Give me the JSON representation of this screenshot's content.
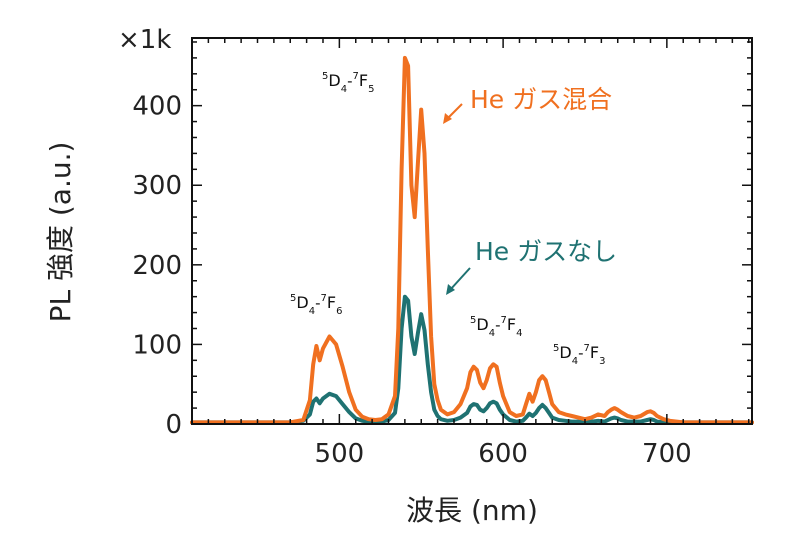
{
  "chart_data": {
    "type": "line",
    "title": "",
    "xlabel": "波長 (nm)",
    "ylabel": "PL 強度 (a.u.)",
    "y_multiplier": "×1k",
    "xlim": [
      410,
      752
    ],
    "ylim": [
      0,
      485
    ],
    "xticks": [
      500,
      600,
      700
    ],
    "yticks": [
      0,
      100,
      200,
      300,
      400
    ],
    "grid": false,
    "series": [
      {
        "name": "He ガス混合",
        "color": "#f07020",
        "x": [
          410,
          470,
          478,
          482,
          484,
          486,
          488,
          490,
          494,
          498,
          502,
          506,
          510,
          514,
          518,
          522,
          526,
          530,
          534,
          536,
          538,
          540,
          542,
          544,
          546,
          548,
          550,
          552,
          554,
          556,
          558,
          560,
          562,
          566,
          570,
          574,
          578,
          580,
          582,
          584,
          586,
          588,
          590,
          592,
          594,
          596,
          598,
          600,
          604,
          608,
          612,
          614,
          616,
          618,
          620,
          622,
          624,
          626,
          628,
          630,
          634,
          638,
          642,
          646,
          650,
          654,
          658,
          662,
          664,
          666,
          668,
          670,
          672,
          676,
          680,
          684,
          688,
          690,
          692,
          694,
          698,
          702,
          706,
          710,
          752
        ],
        "y": [
          2,
          2,
          5,
          30,
          75,
          98,
          80,
          95,
          110,
          100,
          72,
          40,
          18,
          9,
          6,
          5,
          6,
          12,
          35,
          120,
          320,
          460,
          450,
          300,
          260,
          330,
          395,
          340,
          220,
          110,
          50,
          30,
          18,
          12,
          15,
          25,
          45,
          65,
          72,
          68,
          52,
          45,
          55,
          70,
          75,
          72,
          52,
          35,
          15,
          10,
          12,
          25,
          38,
          28,
          40,
          55,
          60,
          55,
          40,
          25,
          15,
          12,
          10,
          8,
          6,
          8,
          12,
          10,
          15,
          18,
          20,
          18,
          15,
          10,
          8,
          10,
          15,
          16,
          14,
          10,
          6,
          4,
          3,
          2,
          2
        ]
      },
      {
        "name": "He ガスなし",
        "color": "#1f7272",
        "x": [
          410,
          470,
          478,
          482,
          484,
          486,
          488,
          490,
          494,
          498,
          502,
          506,
          510,
          514,
          518,
          522,
          526,
          530,
          534,
          536,
          538,
          540,
          542,
          544,
          546,
          548,
          550,
          552,
          554,
          556,
          558,
          560,
          562,
          566,
          570,
          574,
          578,
          580,
          582,
          584,
          586,
          588,
          590,
          592,
          594,
          596,
          598,
          600,
          604,
          608,
          612,
          614,
          616,
          618,
          620,
          622,
          624,
          626,
          628,
          630,
          634,
          638,
          642,
          646,
          650,
          654,
          658,
          662,
          664,
          666,
          668,
          670,
          672,
          676,
          680,
          684,
          688,
          690,
          692,
          694,
          698,
          702,
          706,
          710,
          752
        ],
        "y": [
          2,
          2,
          4,
          12,
          28,
          32,
          26,
          32,
          38,
          35,
          25,
          15,
          7,
          4,
          3,
          3,
          3,
          5,
          14,
          45,
          120,
          160,
          155,
          110,
          88,
          115,
          138,
          118,
          75,
          40,
          18,
          10,
          6,
          4,
          5,
          8,
          14,
          22,
          25,
          24,
          18,
          16,
          20,
          26,
          28,
          26,
          18,
          12,
          5,
          3,
          4,
          8,
          13,
          10,
          14,
          20,
          24,
          20,
          14,
          8,
          5,
          4,
          3,
          3,
          2,
          3,
          4,
          3,
          5,
          7,
          8,
          7,
          5,
          3,
          3,
          3,
          5,
          6,
          5,
          3,
          2,
          2,
          2,
          2,
          2
        ]
      }
    ],
    "annotations": [
      {
        "ion": "5D4",
        "to": "7F5",
        "pre_sup": "5",
        "base1": "D",
        "sub1": "4",
        "sep": "-",
        "sup2": "7",
        "base2": "F",
        "sub2": "5"
      },
      {
        "ion": "5D4",
        "to": "7F6",
        "pre_sup": "5",
        "base1": "D",
        "sub1": "4",
        "sep": "-",
        "sup2": "7",
        "base2": "F",
        "sub2": "6"
      },
      {
        "ion": "5D4",
        "to": "7F4",
        "pre_sup": "5",
        "base1": "D",
        "sub1": "4",
        "sep": "-",
        "sup2": "7",
        "base2": "F",
        "sub2": "4"
      },
      {
        "ion": "5D4",
        "to": "7F3",
        "pre_sup": "5",
        "base1": "D",
        "sub1": "4",
        "sep": "-",
        "sup2": "7",
        "base2": "F",
        "sub2": "3"
      }
    ]
  }
}
